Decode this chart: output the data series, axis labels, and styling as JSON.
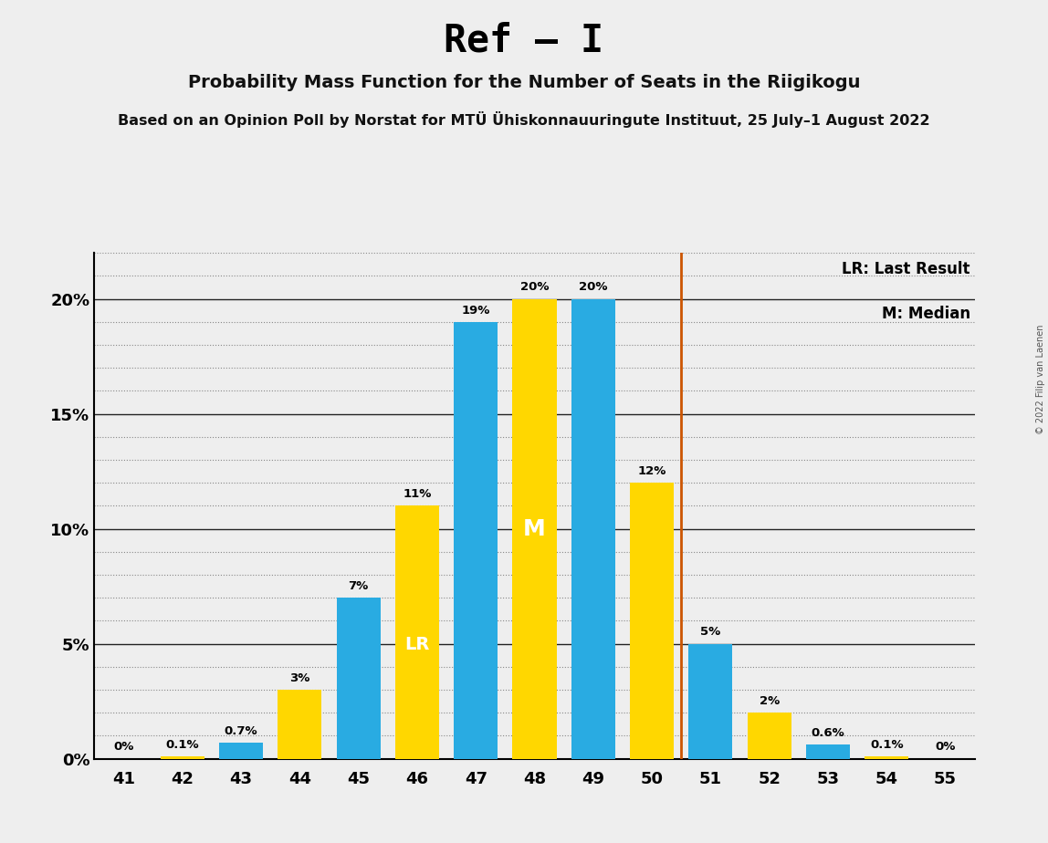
{
  "title": "Ref – I",
  "subtitle1": "Probability Mass Function for the Number of Seats in the Riigikogu",
  "subtitle2": "Based on an Opinion Poll by Norstat for MTÜ Ühiskonnauuringute Instituut, 25 July–1 August 2022",
  "copyright": "© 2022 Filip van Laenen",
  "seats": [
    41,
    42,
    43,
    44,
    45,
    46,
    47,
    48,
    49,
    50,
    51,
    52,
    53,
    54,
    55
  ],
  "values": [
    0.0,
    0.1,
    0.7,
    3.0,
    7.0,
    11.0,
    19.0,
    20.0,
    20.0,
    12.0,
    5.0,
    2.0,
    0.6,
    0.1,
    0.0
  ],
  "bar_colors": [
    "#29ABE2",
    "#FFD700",
    "#29ABE2",
    "#FFD700",
    "#29ABE2",
    "#FFD700",
    "#29ABE2",
    "#FFD700",
    "#29ABE2",
    "#FFD700",
    "#29ABE2",
    "#FFD700",
    "#29ABE2",
    "#FFD700",
    "#29ABE2"
  ],
  "top_labels": [
    "0%",
    "0.1%",
    "0.7%",
    "3%",
    "7%",
    "11%",
    "19%",
    "20%",
    "20%",
    "12%",
    "5%",
    "2%",
    "0.6%",
    "0.1%",
    "0%"
  ],
  "blue_color": "#29ABE2",
  "yellow_color": "#FFD700",
  "vline_color": "#CC5500",
  "median_seat": 48,
  "lr_seat": 46,
  "background_color": "#EEEEEE",
  "ylim_max": 22,
  "yticks": [
    0,
    5,
    10,
    15,
    20
  ],
  "ytick_labels": [
    "0%",
    "5%",
    "10%",
    "15%",
    "20%"
  ],
  "show_labels_at": [
    41,
    42,
    43,
    44,
    45,
    46,
    47,
    48,
    49,
    50,
    51,
    52,
    53,
    54,
    55
  ]
}
